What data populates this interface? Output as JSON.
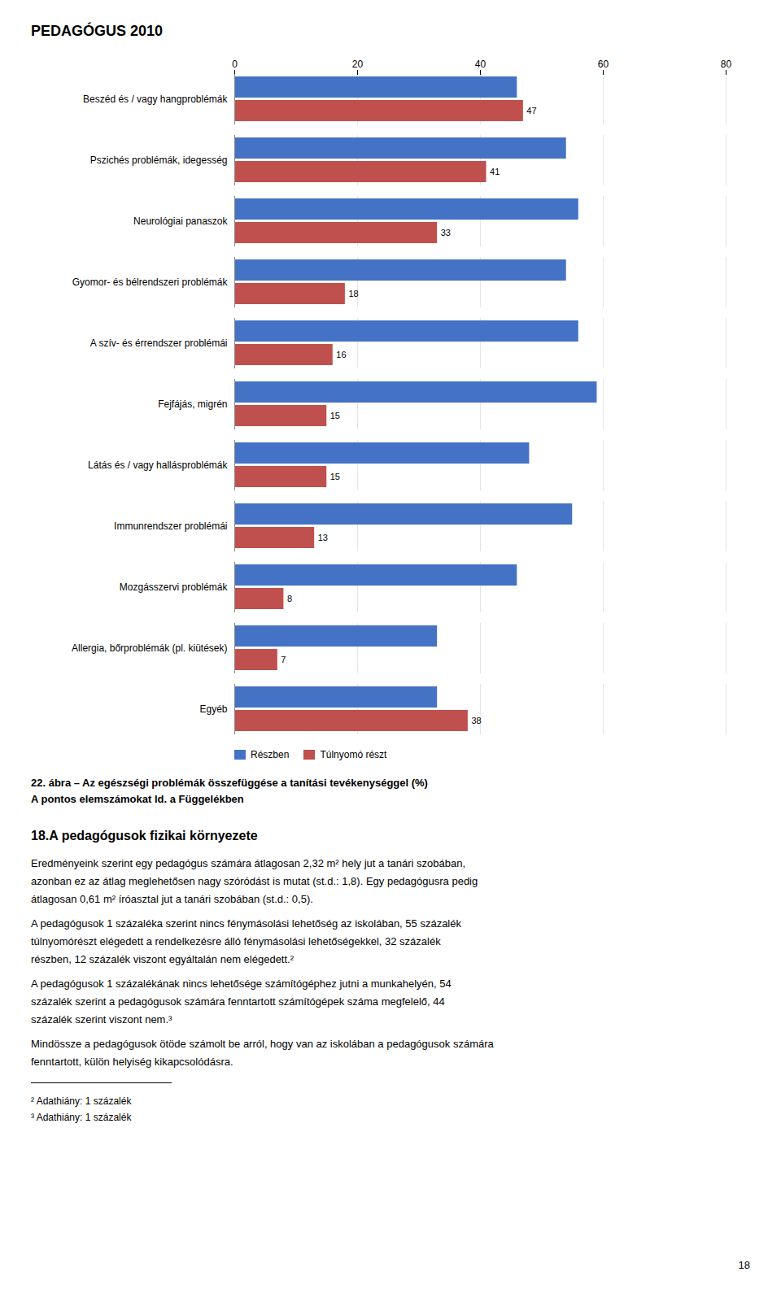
{
  "page_title": "PEDAGÓGUS 2010",
  "chart_data": {
    "type": "bar",
    "orientation": "horizontal",
    "categories": [
      "Beszéd és / vagy hangproblémák",
      "Pszichés problémák, idegesség",
      "Neurológiai panaszok",
      "Gyomor- és bélrendszeri problémák",
      "A szív- és érrendszer problémái",
      "Fejfájás, migrén",
      "Látás és / vagy hallásproblémák",
      "Immunrendszer problémái",
      "Mozgásszervi problémák",
      "Allergia, bőrproblémák (pl. kiütések)",
      "Egyéb"
    ],
    "series": [
      {
        "name": "Részben",
        "color": "#4472C4",
        "values": [
          46,
          54,
          56,
          54,
          56,
          59,
          48,
          55,
          46,
          33,
          33
        ]
      },
      {
        "name": "Túlnyomó részt",
        "color": "#C0504D",
        "values": [
          47,
          41,
          33,
          18,
          16,
          15,
          15,
          13,
          8,
          7,
          38
        ],
        "data_labels": true
      }
    ],
    "xlim": [
      0,
      80
    ],
    "xticks": [
      0,
      20,
      40,
      60,
      80
    ],
    "grid": true,
    "legend": "lower left",
    "caption": [
      "22. ábra – Az egészségi problémák összefüggése a tanítási tevékenységgel (%)",
      "A pontos elemszámokat ld. a Függelékben"
    ]
  },
  "section_title": "18.A pedagógusok fizikai környezete",
  "body_paragraphs": [
    [
      "Eredményeink szerint egy pedagógus számára átlagosan 2,32 m² hely jut a tanári szobában,",
      "azonban ez az átlag meglehetősen nagy szóródást is mutat (st.d.: 1,8). Egy pedagógusra pedig",
      "átlagosan 0,61 m² íróasztal jut a tanári szobában (st.d.: 0,5)."
    ],
    [
      "A pedagógusok 1 százaléka szerint nincs fénymásolási lehetőség az iskolában, 55 százalék",
      "túlnyomórészt elégedett a rendelkezésre álló fénymásolási lehetőségekkel, 32 százalék",
      "részben, 12 százalék viszont egyáltalán nem elégedett.²"
    ],
    [
      "A pedagógusok 1 százalékának nincs lehetősége számítógéphez jutni a munkahelyén, 54",
      "százalék szerint a pedagógusok számára fenntartott számítógépek száma megfelelő, 44",
      "százalék szerint viszont nem.³"
    ],
    [
      "Mindössze a pedagógusok ötöde számolt be arról, hogy van az iskolában a pedagógusok számára",
      "fenntartott, külön helyiség kikapcsolódásra."
    ]
  ],
  "footnotes": [
    "² Adathiány: 1 százalék",
    "³ Adathiány: 1 százalék"
  ],
  "page_number": "18"
}
